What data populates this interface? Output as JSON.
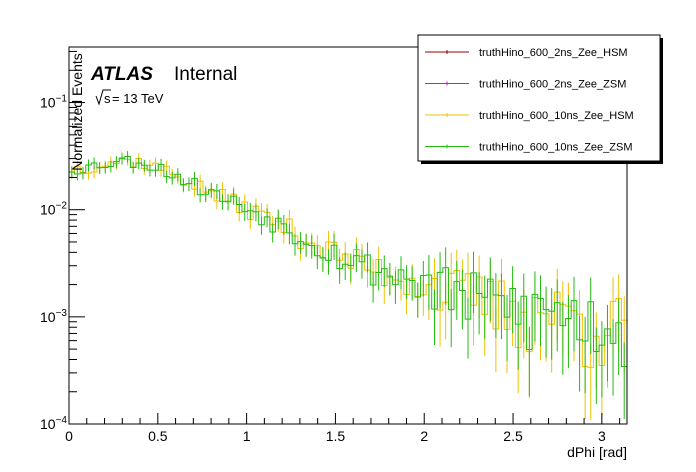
{
  "chart_data": {
    "type": "line",
    "style": "histogram-step-with-error-bars",
    "xlabel": "dPhi [rad]",
    "ylabel": "Normalized Events",
    "xlim": [
      0,
      3.1416
    ],
    "ylim": [
      0.0001,
      0.33
    ],
    "yscale": "log",
    "x_ticks": [
      {
        "value": 0,
        "label": "0"
      },
      {
        "value": 0.5,
        "label": "0.5"
      },
      {
        "value": 1,
        "label": "1"
      },
      {
        "value": 1.5,
        "label": "1.5"
      },
      {
        "value": 2,
        "label": "2"
      },
      {
        "value": 2.5,
        "label": "2.5"
      },
      {
        "value": 3,
        "label": "3"
      }
    ],
    "y_ticks": [
      {
        "value": 0.0001,
        "base": "10",
        "exp": "−4"
      },
      {
        "value": 0.001,
        "base": "10",
        "exp": "−3"
      },
      {
        "value": 0.01,
        "base": "10",
        "exp": "−2"
      },
      {
        "value": 0.1,
        "base": "10",
        "exp": "−1"
      }
    ],
    "annotations": {
      "experiment": "ATLAS",
      "status": "Internal",
      "energy_sqrt": "s",
      "energy_rest": " = 13 TeV"
    },
    "legend_position": "top-right",
    "n_bins": 100,
    "profile": {
      "x": [
        0,
        0.1,
        0.2,
        0.3,
        0.4,
        0.5,
        0.6,
        0.8,
        1.0,
        1.2,
        1.4,
        1.6,
        1.8,
        2.0,
        2.2,
        2.4,
        2.6,
        2.8,
        3.0,
        3.1416
      ],
      "y": [
        0.024,
        0.025,
        0.027,
        0.029,
        0.028,
        0.025,
        0.021,
        0.0145,
        0.0105,
        0.0072,
        0.0048,
        0.0033,
        0.0026,
        0.0021,
        0.0017,
        0.0014,
        0.0012,
        0.0011,
        0.0009,
        0.0009
      ]
    },
    "series": [
      {
        "name": "truthHino_600_2ns_Zee_HSM",
        "color": "#990000",
        "seed": 11,
        "noise": 0.0,
        "visible": false
      },
      {
        "name": "truthHino_600_2ns_Zee_ZSM",
        "color": "#ee00ee",
        "seed": 23,
        "noise": 0.0,
        "visible": false
      },
      {
        "name": "truthHino_600_10ns_Zee_HSM",
        "color": "#f0c000",
        "seed": 37,
        "noise": 1.0,
        "visible": true
      },
      {
        "name": "truthHino_600_10ns_Zee_ZSM",
        "color": "#22bb11",
        "seed": 53,
        "noise": 1.0,
        "visible": true
      }
    ]
  }
}
